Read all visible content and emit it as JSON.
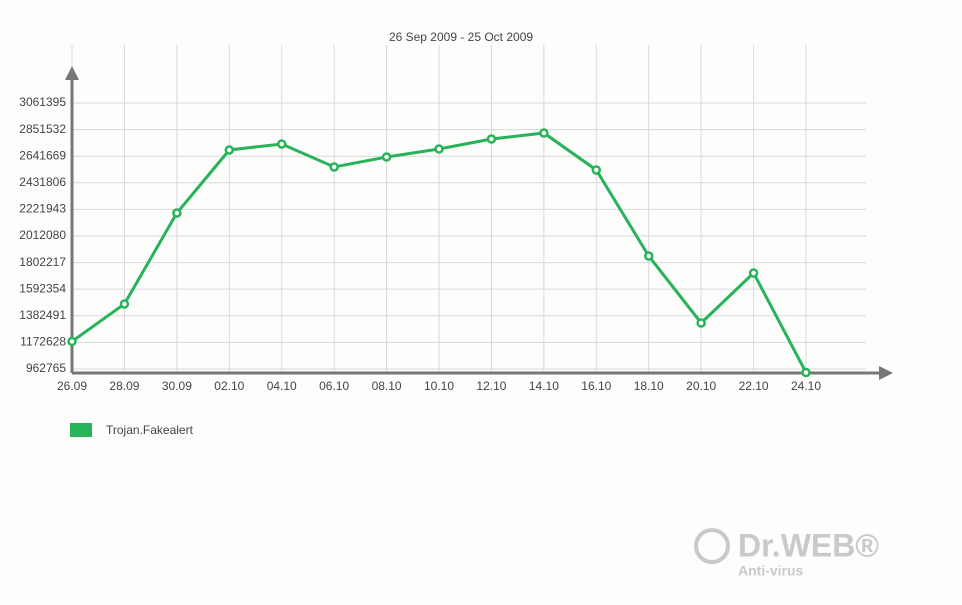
{
  "chart_data": {
    "type": "line",
    "title": "26 Sep 2009 - 25 Oct 2009",
    "categories": [
      "26.09",
      "28.09",
      "30.09",
      "02.10",
      "04.10",
      "06.10",
      "08.10",
      "10.10",
      "12.10",
      "14.10",
      "16.10",
      "18.10",
      "20.10",
      "22.10",
      "24.10"
    ],
    "series": [
      {
        "name": "Trojan.Fakealert",
        "color": "#27b35a",
        "values": [
          1180000,
          1475600,
          2193600,
          2690700,
          2738000,
          2556500,
          2635400,
          2698600,
          2777500,
          2824800,
          2532900,
          1854300,
          1325700,
          1720200,
          935000
        ]
      }
    ],
    "ylim": [
      931000,
      3306000
    ],
    "yticks": [
      962765,
      1172628,
      1382491,
      1592354,
      1802217,
      2012080,
      2221943,
      2431806,
      2641669,
      2851532,
      3061395
    ],
    "grid": true
  },
  "logo": {
    "brand": "Dr.WEB®",
    "tagline": "Anti-virus"
  }
}
